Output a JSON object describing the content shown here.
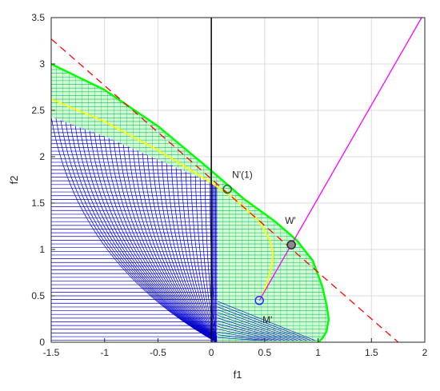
{
  "chart_data": {
    "type": "line",
    "title": "",
    "xlabel": "f1",
    "ylabel": "f2",
    "xlim": [
      -1.5,
      2
    ],
    "ylim": [
      0,
      3.5
    ],
    "xticks": [
      -1.5,
      -1,
      -0.5,
      0,
      0.5,
      1,
      1.5,
      2
    ],
    "yticks": [
      0,
      0.5,
      1,
      1.5,
      2,
      2.5,
      3,
      3.5
    ],
    "xtick_labels": [
      "-1.5",
      "-1",
      "-0.5",
      "0",
      "0.5",
      "1",
      "1.5",
      "2"
    ],
    "ytick_labels": [
      "0",
      "0.5",
      "1",
      "1.5",
      "2",
      "2.5",
      "3",
      "3.5"
    ],
    "grid": true,
    "legend": "none",
    "colors": {
      "blue_mesh": "#0000cc",
      "green_boundary": "#00ff00",
      "teal_mesh": "#009b8a",
      "yellow_curve": "#ffff00",
      "red_dashed": "#ff0000",
      "magenta_line": "#ff00ff",
      "axis": "#262626",
      "grid": "#dcdcdc"
    },
    "series": [
      {
        "kind": "green-frontier",
        "x": [
          -1.5,
          -1.0,
          -0.5,
          0.0,
          0.3,
          0.6,
          0.8,
          0.95,
          1.04,
          1.08,
          1.1,
          1.08,
          1.04,
          1.0
        ],
        "y": [
          3.0,
          2.72,
          2.33,
          1.85,
          1.55,
          1.3,
          1.1,
          0.88,
          0.6,
          0.4,
          0.25,
          0.12,
          0.04,
          0.0
        ]
      },
      {
        "kind": "yellow-curve",
        "x": [
          -1.5,
          -1.0,
          -0.5,
          0.0,
          0.25,
          0.45,
          0.55,
          0.58,
          0.56,
          0.52,
          0.47
        ],
        "y": [
          2.62,
          2.38,
          2.07,
          1.72,
          1.52,
          1.3,
          1.1,
          0.95,
          0.8,
          0.63,
          0.48
        ]
      },
      {
        "kind": "red-dashed-line",
        "x": [
          -1.5,
          1.8
        ],
        "y": [
          3.27,
          -0.05
        ]
      },
      {
        "kind": "magenta-line",
        "x": [
          0.45,
          1.97
        ],
        "y": [
          0.45,
          3.5
        ]
      }
    ],
    "points": [
      {
        "label": "N'(1)",
        "x": 0.15,
        "y": 1.65,
        "marker": "circle",
        "color": "#2b6a25"
      },
      {
        "label": "W'",
        "x": 0.75,
        "y": 1.05,
        "marker": "circle-filled",
        "color": "#2b2b2b"
      },
      {
        "label": "M'",
        "x": 0.45,
        "y": 0.45,
        "marker": "circle",
        "color": "#2b2bff"
      }
    ]
  }
}
